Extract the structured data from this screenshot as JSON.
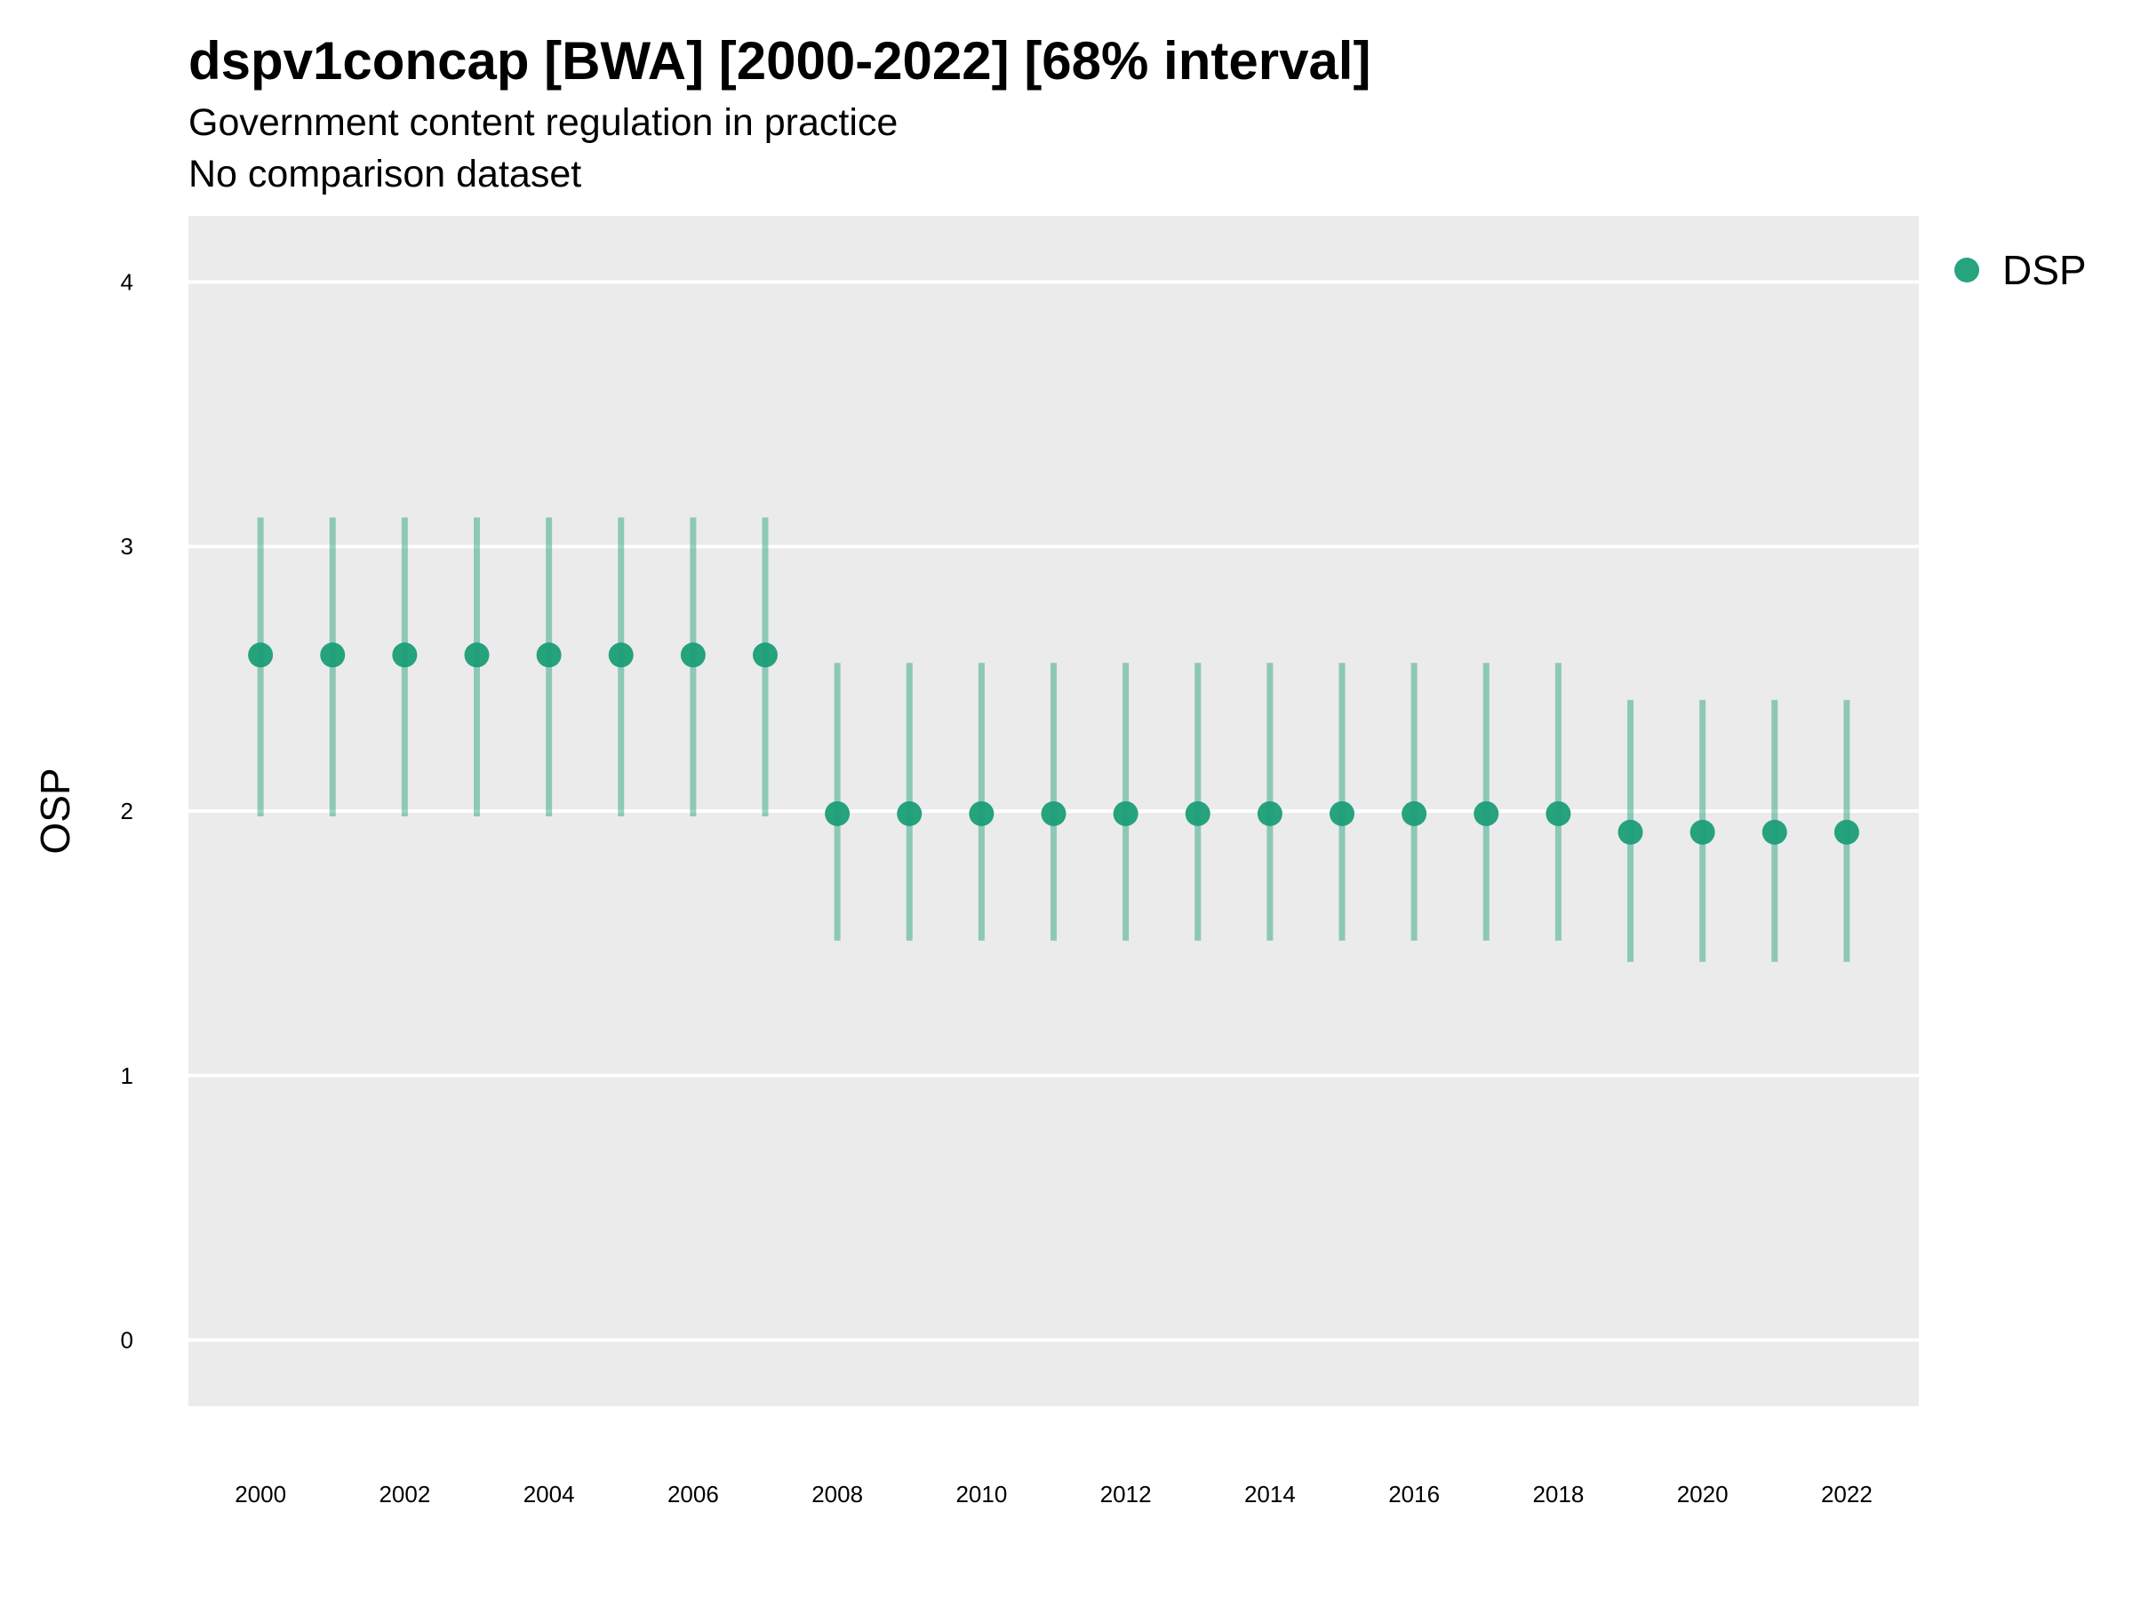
{
  "chart_data": {
    "type": "scatter",
    "title": "dspv1concap [BWA] [2000-2022] [68% interval]",
    "subtitle": "Government content regulation in practice",
    "subtitle2": "No comparison dataset",
    "xlabel": "",
    "ylabel": "OSP",
    "ylim": [
      -0.25,
      4.25
    ],
    "xlim": [
      1999,
      2023
    ],
    "yticks": [
      0,
      1,
      2,
      3,
      4
    ],
    "xticks": [
      2000,
      2002,
      2004,
      2006,
      2008,
      2010,
      2012,
      2014,
      2016,
      2018,
      2020,
      2022
    ],
    "grid": true,
    "legend_position": "right",
    "series": [
      {
        "name": "DSP",
        "color": "#1b9e77",
        "x": [
          2000,
          2001,
          2002,
          2003,
          2004,
          2005,
          2006,
          2007,
          2008,
          2009,
          2010,
          2011,
          2012,
          2013,
          2014,
          2015,
          2016,
          2017,
          2018,
          2019,
          2020,
          2021,
          2022
        ],
        "y": [
          2.59,
          2.59,
          2.59,
          2.59,
          2.59,
          2.59,
          2.59,
          2.59,
          1.99,
          1.99,
          1.99,
          1.99,
          1.99,
          1.99,
          1.99,
          1.99,
          1.99,
          1.99,
          1.99,
          1.92,
          1.92,
          1.92,
          1.92
        ],
        "lower": [
          1.98,
          1.98,
          1.98,
          1.98,
          1.98,
          1.98,
          1.98,
          1.98,
          1.51,
          1.51,
          1.51,
          1.51,
          1.51,
          1.51,
          1.51,
          1.51,
          1.51,
          1.51,
          1.51,
          1.43,
          1.43,
          1.43,
          1.43
        ],
        "upper": [
          3.11,
          3.11,
          3.11,
          3.11,
          3.11,
          3.11,
          3.11,
          3.11,
          2.56,
          2.56,
          2.56,
          2.56,
          2.56,
          2.56,
          2.56,
          2.56,
          2.56,
          2.56,
          2.56,
          2.42,
          2.42,
          2.42,
          2.42
        ]
      }
    ]
  }
}
